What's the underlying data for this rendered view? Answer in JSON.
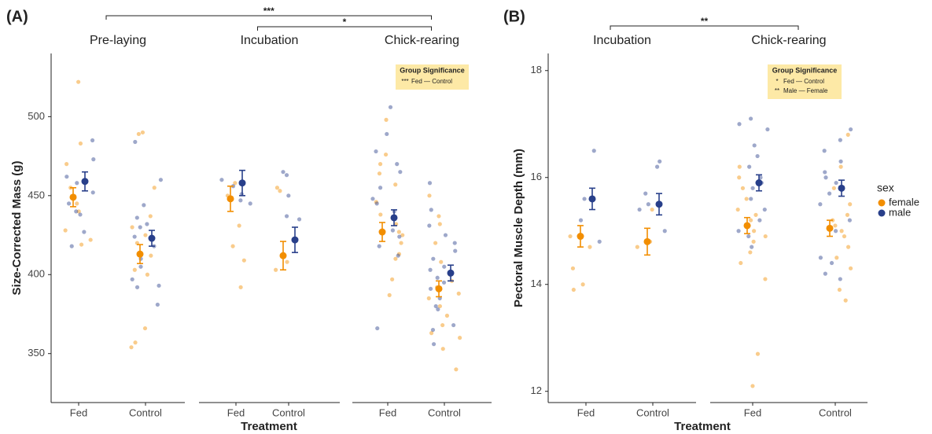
{
  "legend": {
    "title": "sex",
    "series": [
      {
        "name": "female",
        "color": "#f28e00"
      },
      {
        "name": "male",
        "color": "#283f8a"
      }
    ]
  },
  "chart_data": [
    {
      "type": "point",
      "panel_label": "(A)",
      "y_label": "Size-Corrected Mass (g)",
      "x_label": "Treatment",
      "ylim": [
        319,
        540
      ],
      "yticks": [
        350,
        400,
        450,
        500
      ],
      "categories": [
        "Fed",
        "Control"
      ],
      "facets": [
        {
          "name": "Pre-laying",
          "series": [
            {
              "mean": [
                449,
                413
              ],
              "err": [
                6,
                6
              ],
              "points": [
                [
                  522,
                  483,
                  470,
                  455,
                  445,
                  440,
                  428,
                  422,
                  419
                ],
                [
                  490,
                  489,
                  455,
                  437,
                  430,
                  425,
                  420,
                  412,
                  403,
                  400,
                  366,
                  357,
                  354
                ]
              ]
            },
            {
              "mean": [
                459,
                423
              ],
              "err": [
                6,
                5
              ],
              "points": [
                [
                  485,
                  473,
                  462,
                  458,
                  452,
                  445,
                  440,
                  438,
                  427,
                  418
                ],
                [
                  484,
                  460,
                  444,
                  436,
                  432,
                  430,
                  424,
                  418,
                  410,
                  405,
                  397,
                  393,
                  392,
                  381
                ]
              ]
            }
          ]
        },
        {
          "name": "Incubation",
          "series": [
            {
              "mean": [
                448,
                412
              ],
              "err": [
                8,
                9
              ],
              "points": [
                [
                  458,
                  450,
                  431,
                  418,
                  409,
                  392
                ],
                [
                  455,
                  453,
                  408,
                  403
                ]
              ]
            },
            {
              "mean": [
                458,
                422
              ],
              "err": [
                8,
                8
              ],
              "points": [
                [
                  460,
                  456,
                  451,
                  447,
                  445
                ],
                [
                  465,
                  463,
                  450,
                  437,
                  435
                ]
              ]
            }
          ]
        },
        {
          "name": "Chick-rearing",
          "series": [
            {
              "mean": [
                427,
                391
              ],
              "err": [
                6,
                5
              ],
              "points": [
                [
                  498,
                  476,
                  470,
                  464,
                  457,
                  446,
                  438,
                  432,
                  427,
                  425,
                  420,
                  413,
                  410,
                  397,
                  387
                ],
                [
                  450,
                  437,
                  432,
                  420,
                  408,
                  400,
                  396,
                  392,
                  388,
                  385,
                  380,
                  374,
                  368,
                  363,
                  360,
                  353,
                  340
                ]
              ]
            },
            {
              "mean": [
                436,
                401
              ],
              "err": [
                5,
                5
              ],
              "points": [
                [
                  506,
                  489,
                  478,
                  470,
                  465,
                  455,
                  448,
                  445,
                  440,
                  436,
                  428,
                  424,
                  418,
                  412,
                  366
                ],
                [
                  458,
                  441,
                  431,
                  425,
                  420,
                  415,
                  410,
                  405,
                  403,
                  398,
                  395,
                  391,
                  385,
                  380,
                  378,
                  368,
                  365,
                  356
                ]
              ]
            }
          ]
        }
      ],
      "brackets": [
        {
          "label": "***",
          "from": "Pre-laying",
          "to": "Chick-rearing"
        },
        {
          "label": "*",
          "from": "Incubation",
          "to": "Chick-rearing"
        }
      ],
      "significance_box": {
        "title": "Group Significance",
        "rows": [
          {
            "stars": "***",
            "text": "Fed — Control"
          }
        ]
      }
    },
    {
      "type": "point",
      "panel_label": "(B)",
      "y_label": "Pectoral Muscle Depth (mm)",
      "x_label": "Treatment",
      "ylim": [
        11.79,
        18.32
      ],
      "yticks": [
        12,
        14,
        16,
        18
      ],
      "categories": [
        "Fed",
        "Control"
      ],
      "facets": [
        {
          "name": "Incubation",
          "series": [
            {
              "mean": [
                14.9,
                14.8
              ],
              "err": [
                0.2,
                0.25
              ],
              "points": [
                [
                  14.9,
                  14.7,
                  14.3,
                  14.0,
                  13.9
                ],
                [
                  15.4,
                  14.8,
                  14.7
                ]
              ]
            },
            {
              "mean": [
                15.6,
                15.5
              ],
              "err": [
                0.2,
                0.2
              ],
              "points": [
                [
                  16.5,
                  15.6,
                  15.6,
                  15.2,
                  14.8
                ],
                [
                  16.3,
                  16.2,
                  15.7,
                  15.5,
                  15.4,
                  15.0
                ]
              ]
            }
          ]
        },
        {
          "name": "Chick-rearing",
          "series": [
            {
              "mean": [
                15.1,
                15.05
              ],
              "err": [
                0.15,
                0.15
              ],
              "points": [
                [
                  16.2,
                  16.0,
                  15.8,
                  15.6,
                  15.4,
                  15.3,
                  15.2,
                  15.1,
                  15.0,
                  14.9,
                  14.8,
                  14.6,
                  14.4,
                  14.1,
                  12.7,
                  12.1
                ],
                [
                  16.8,
                  16.2,
                  15.8,
                  15.5,
                  15.3,
                  15.2,
                  15.1,
                  15.0,
                  14.9,
                  14.7,
                  14.5,
                  14.3,
                  13.9,
                  13.7
                ]
              ]
            },
            {
              "mean": [
                15.9,
                15.8
              ],
              "err": [
                0.15,
                0.15
              ],
              "points": [
                [
                  17.1,
                  17.0,
                  16.9,
                  16.6,
                  16.4,
                  16.2,
                  16.0,
                  15.9,
                  15.8,
                  15.6,
                  15.4,
                  15.2,
                  15.0,
                  14.9,
                  14.7
                ],
                [
                  16.9,
                  16.7,
                  16.5,
                  16.3,
                  16.1,
                  16.0,
                  15.9,
                  15.7,
                  15.5,
                  15.2,
                  15.0,
                  14.5,
                  14.4,
                  14.2,
                  14.1
                ]
              ]
            }
          ]
        }
      ],
      "brackets": [
        {
          "label": "**",
          "from": "Incubation",
          "to": "Chick-rearing"
        }
      ],
      "significance_box": {
        "title": "Group Significance",
        "rows": [
          {
            "stars": "*",
            "text": "Fed — Control"
          },
          {
            "stars": "**",
            "text": "Male — Female"
          }
        ]
      }
    }
  ]
}
